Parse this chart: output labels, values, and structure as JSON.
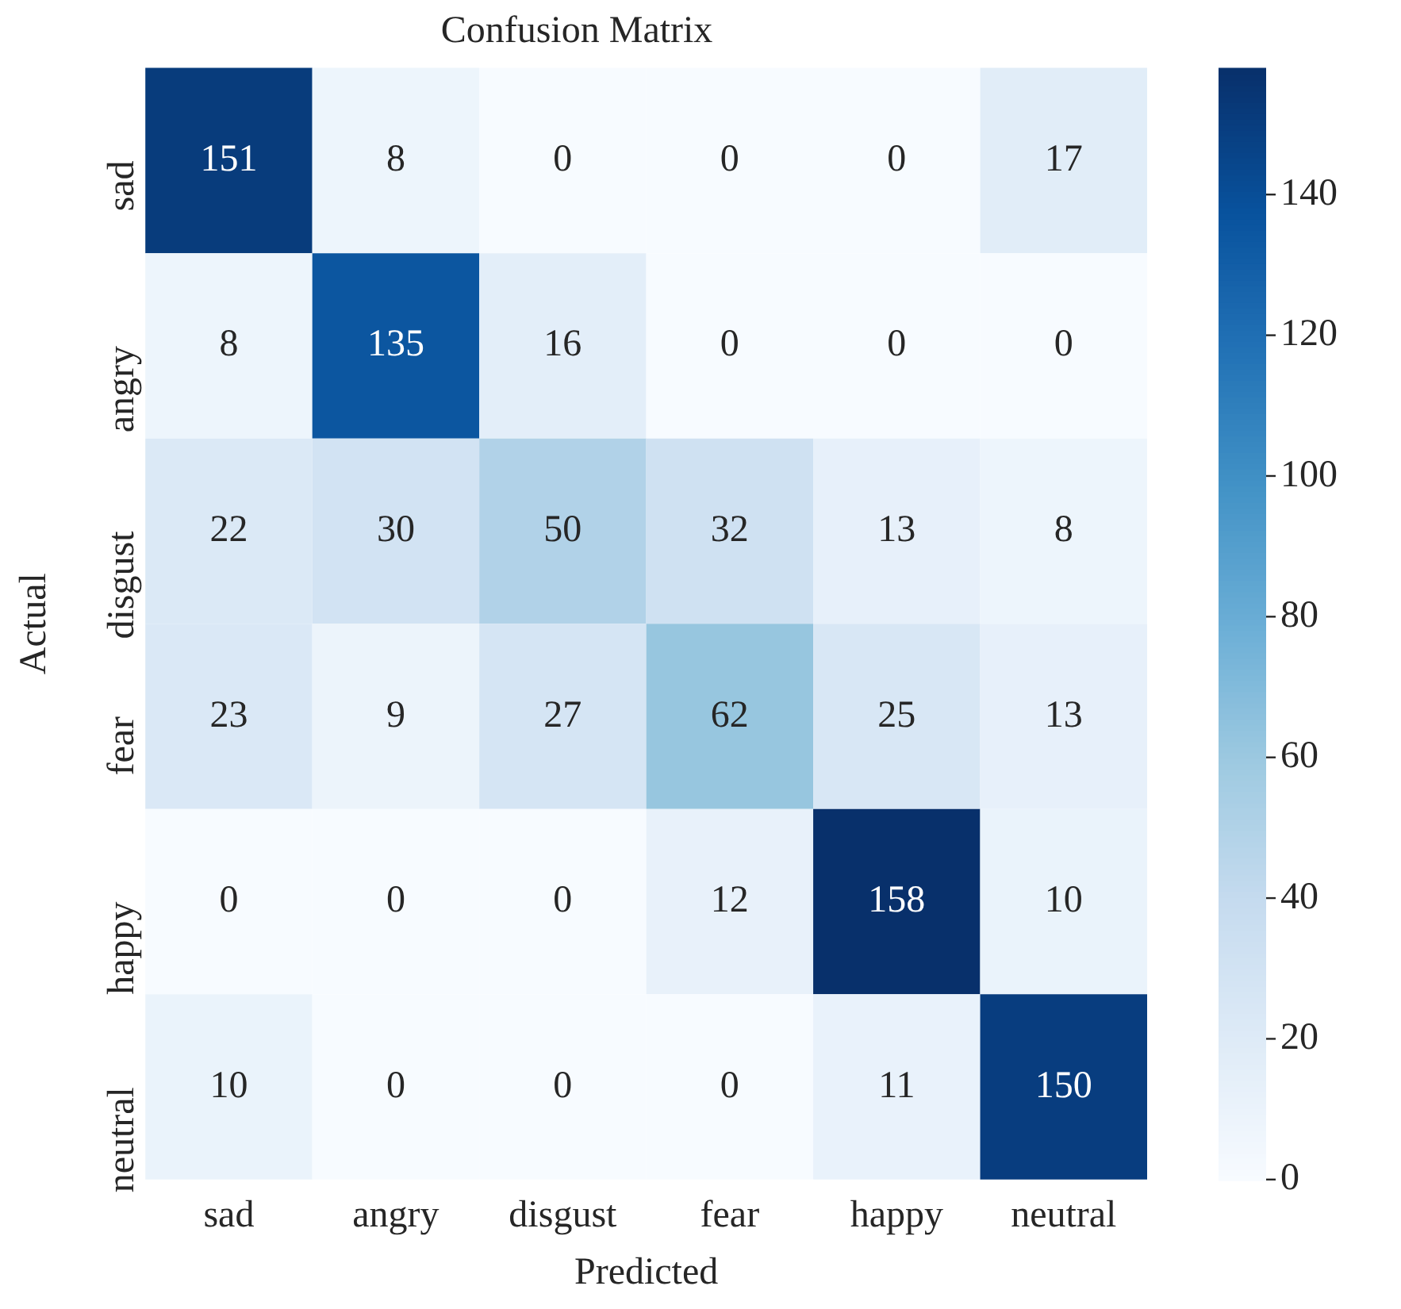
{
  "chart_data": {
    "type": "heatmap",
    "title": "Confusion Matrix",
    "xlabel": "Predicted",
    "ylabel": "Actual",
    "categories": [
      "sad",
      "angry",
      "disgust",
      "fear",
      "happy",
      "neutral"
    ],
    "y_categories": [
      "sad",
      "angry",
      "disgust",
      "fear",
      "happy",
      "neutral"
    ],
    "cells": [
      [
        151,
        8,
        0,
        0,
        0,
        17
      ],
      [
        8,
        135,
        16,
        0,
        0,
        0
      ],
      [
        22,
        30,
        50,
        32,
        13,
        8
      ],
      [
        23,
        9,
        27,
        62,
        25,
        13
      ],
      [
        0,
        0,
        0,
        12,
        158,
        10
      ],
      [
        10,
        0,
        0,
        0,
        11,
        150
      ]
    ],
    "data_labels": true,
    "clim": [
      0,
      158
    ],
    "cticks": [
      0,
      20,
      40,
      60,
      80,
      100,
      120,
      140
    ]
  }
}
